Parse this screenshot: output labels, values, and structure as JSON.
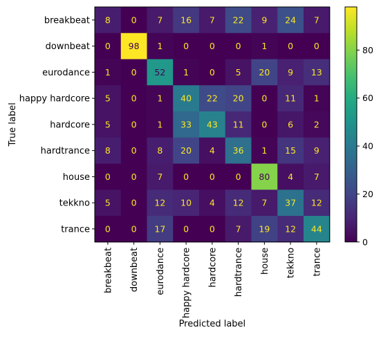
{
  "chart_data": {
    "type": "heatmap",
    "title": "",
    "xlabel": "Predicted label",
    "ylabel": "True label",
    "x_categories": [
      "breakbeat",
      "downbeat",
      "eurodance",
      "happy hardcore",
      "hardcore",
      "hardtrance",
      "house",
      "tekkno",
      "trance"
    ],
    "y_categories": [
      "breakbeat",
      "downbeat",
      "eurodance",
      "happy hardcore",
      "hardcore",
      "hardtrance",
      "house",
      "tekkno",
      "trance"
    ],
    "values": [
      [
        8,
        0,
        7,
        16,
        7,
        22,
        9,
        24,
        7
      ],
      [
        0,
        98,
        1,
        0,
        0,
        0,
        1,
        0,
        0
      ],
      [
        1,
        0,
        52,
        1,
        0,
        5,
        20,
        9,
        13
      ],
      [
        5,
        0,
        1,
        40,
        22,
        20,
        0,
        11,
        1
      ],
      [
        5,
        0,
        1,
        33,
        43,
        11,
        0,
        6,
        2
      ],
      [
        8,
        0,
        8,
        20,
        4,
        36,
        1,
        15,
        9
      ],
      [
        0,
        0,
        7,
        0,
        0,
        0,
        80,
        4,
        7
      ],
      [
        5,
        0,
        12,
        10,
        4,
        12,
        7,
        37,
        12
      ],
      [
        0,
        0,
        17,
        0,
        0,
        7,
        19,
        12,
        44
      ]
    ],
    "colormap": "viridis",
    "vmin": 0,
    "vmax": 98,
    "colorbar": {
      "ticks": [
        0,
        20,
        40,
        60,
        80
      ]
    },
    "text_color_low": "#fde725",
    "text_color_high": "#440154",
    "grid": false
  }
}
